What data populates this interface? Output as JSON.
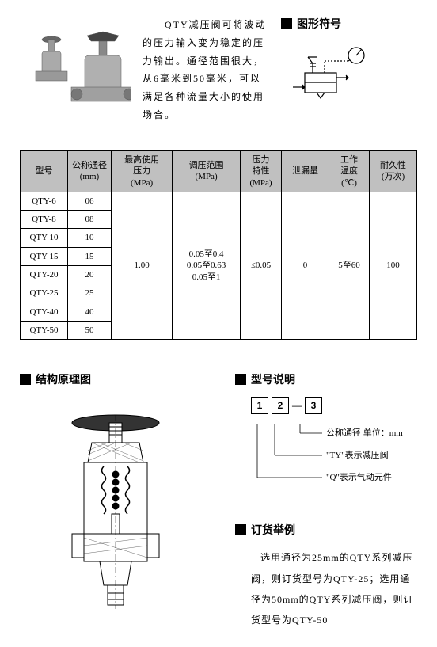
{
  "description": "　　QTY减压阀可将波动的压力输入变为稳定的压力输出。通径范围很大，从6毫米到50毫米，可以满足各种流量大小的使用场合。",
  "sections": {
    "symbol": "图形符号",
    "structure": "结构原理图",
    "model": "型号说明",
    "order": "订货举例"
  },
  "table": {
    "headers": [
      "型号",
      "公称通径\n(mm)",
      "最高使用\n压力\n(MPa)",
      "调压范围\n(MPa)",
      "压力\n特性\n(MPa)",
      "泄漏量",
      "工作\n温度\n(℃)",
      "耐久性\n(万次)"
    ],
    "rows": [
      {
        "model": "QTY-6",
        "size": "06"
      },
      {
        "model": "QTY-8",
        "size": "08"
      },
      {
        "model": "QTY-10",
        "size": "10"
      },
      {
        "model": "QTY-15",
        "size": "15"
      },
      {
        "model": "QTY-20",
        "size": "20"
      },
      {
        "model": "QTY-25",
        "size": "25"
      },
      {
        "model": "QTY-40",
        "size": "40"
      },
      {
        "model": "QTY-50",
        "size": "50"
      }
    ],
    "merged": {
      "pressure": "1.00",
      "range": "0.05至0.4\n0.05至0.63\n0.05至1",
      "char": "≤0.05",
      "leak": "0",
      "temp": "5至60",
      "dur": "100"
    }
  },
  "modelBoxes": [
    "1",
    "2",
    "3"
  ],
  "explanations": [
    "公称通径　单位：mm",
    "\"TY\"表示减压阀",
    "\"Q\"表示气动元件"
  ],
  "orderText": "选用通径为25mm的QTY系列减压阀，则订货型号为QTY-25；选用通径为50mm的QTY系列减压阀，则订货型号为QTY-50"
}
